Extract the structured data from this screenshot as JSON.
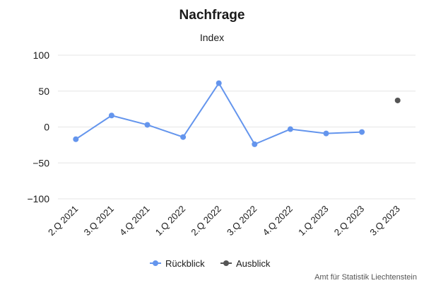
{
  "chart_data": {
    "type": "line",
    "title": "Nachfrage",
    "subtitle": "Index",
    "categories": [
      "2.Q 2021",
      "3.Q 2021",
      "4.Q 2021",
      "1.Q 2022",
      "2.Q 2022",
      "3.Q 2022",
      "4.Q 2022",
      "1.Q 2023",
      "2.Q 2023",
      "3.Q 2023"
    ],
    "yticks": [
      "100",
      "50",
      "0",
      "-50",
      "-100"
    ],
    "ylim": [
      -100,
      100
    ],
    "grid": true,
    "legend_position": "bottom-center",
    "series": [
      {
        "name": "Rückblick",
        "color": "#6495ed",
        "values": [
          -17,
          16,
          3,
          -14,
          61,
          -24,
          -3,
          -9,
          -7,
          null
        ]
      },
      {
        "name": "Ausblick",
        "color": "#555555",
        "values": [
          null,
          null,
          null,
          null,
          null,
          null,
          null,
          null,
          null,
          37
        ]
      }
    ],
    "credit": "Amt für Statistik Liechtenstein"
  }
}
